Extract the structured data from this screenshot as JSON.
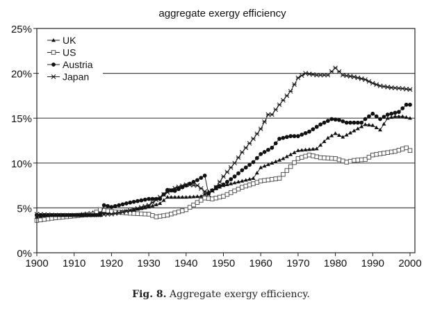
{
  "chart_data": {
    "type": "line",
    "title": "aggregate exergy efficiency",
    "xlabel": "",
    "ylabel": "",
    "xlim": [
      1900,
      2001
    ],
    "ylim": [
      0,
      25
    ],
    "x_ticks": [
      "1900",
      "1910",
      "1920",
      "1930",
      "1940",
      "1950",
      "1960",
      "1970",
      "1980",
      "1990",
      "2000"
    ],
    "y_ticks": [
      "0%",
      "5%",
      "10%",
      "15%",
      "20%",
      "25%"
    ],
    "grid": "horizontal",
    "legend_position": "top-left",
    "series": [
      {
        "name": "UK",
        "marker": "triangle",
        "x": [
          1900,
          1905,
          1910,
          1915,
          1920,
          1925,
          1930,
          1933,
          1935,
          1940,
          1944,
          1946,
          1950,
          1955,
          1958,
          1960,
          1963,
          1966,
          1970,
          1975,
          1978,
          1980,
          1982,
          1985,
          1988,
          1990,
          1992,
          1994,
          1996,
          1998,
          2000
        ],
        "y": [
          4.0,
          4.1,
          4.2,
          4.5,
          4.5,
          4.7,
          5.1,
          5.5,
          6.2,
          6.2,
          6.3,
          6.8,
          7.5,
          8.0,
          8.3,
          9.5,
          10.0,
          10.5,
          11.4,
          11.6,
          12.8,
          13.3,
          12.9,
          13.6,
          14.3,
          14.2,
          13.7,
          15.0,
          15.2,
          15.2,
          15.0
        ]
      },
      {
        "name": "US",
        "marker": "square-open",
        "x": [
          1900,
          1905,
          1910,
          1915,
          1917,
          1920,
          1925,
          1930,
          1932,
          1935,
          1940,
          1943,
          1945,
          1947,
          1950,
          1955,
          1958,
          1960,
          1965,
          1968,
          1970,
          1973,
          1976,
          1980,
          1983,
          1985,
          1988,
          1990,
          1993,
          1996,
          1999,
          2000
        ],
        "y": [
          3.6,
          3.9,
          4.1,
          4.3,
          4.8,
          4.6,
          4.4,
          4.3,
          4.0,
          4.2,
          4.8,
          5.6,
          6.1,
          6.0,
          6.3,
          7.3,
          7.7,
          8.0,
          8.3,
          9.6,
          10.5,
          10.9,
          10.6,
          10.5,
          10.1,
          10.3,
          10.4,
          10.9,
          11.1,
          11.3,
          11.7,
          11.4
        ]
      },
      {
        "name": "Austria",
        "marker": "circle",
        "x": [
          1900,
          1905,
          1910,
          1915,
          1917,
          1918,
          1920,
          1925,
          1930,
          1933,
          1935,
          1937,
          1940,
          1943,
          1945,
          1946,
          1948,
          1950,
          1953,
          1955,
          1958,
          1960,
          1963,
          1965,
          1968,
          1970,
          1973,
          1976,
          1979,
          1981,
          1983,
          1987,
          1988,
          1990,
          1992,
          1994,
          1997,
          1999,
          2000
        ],
        "y": [
          4.2,
          4.2,
          4.2,
          4.2,
          4.2,
          5.3,
          5.1,
          5.6,
          6.0,
          6.0,
          7.0,
          6.9,
          7.5,
          8.1,
          8.6,
          6.6,
          7.3,
          7.6,
          8.5,
          9.2,
          10.1,
          11.0,
          11.7,
          12.7,
          13.0,
          13.0,
          13.5,
          14.3,
          14.9,
          14.8,
          14.5,
          14.5,
          14.9,
          15.5,
          14.9,
          15.4,
          15.7,
          16.5,
          16.5
        ]
      },
      {
        "name": "Japan",
        "marker": "star",
        "x": [
          1900,
          1905,
          1910,
          1915,
          1920,
          1925,
          1930,
          1934,
          1937,
          1940,
          1943,
          1946,
          1948,
          1950,
          1953,
          1955,
          1958,
          1960,
          1962,
          1963,
          1965,
          1968,
          1970,
          1972,
          1975,
          1978,
          1980,
          1982,
          1985,
          1988,
          1990,
          1992,
          1995,
          1998,
          2000
        ],
        "y": [
          4.3,
          4.2,
          4.2,
          4.2,
          4.3,
          4.7,
          5.3,
          6.5,
          7.2,
          7.6,
          7.5,
          6.5,
          7.3,
          8.5,
          10.0,
          11.2,
          12.7,
          13.8,
          15.4,
          15.4,
          16.5,
          18.0,
          19.5,
          20.0,
          19.8,
          19.8,
          20.6,
          19.8,
          19.6,
          19.3,
          18.9,
          18.6,
          18.4,
          18.3,
          18.2
        ]
      }
    ]
  },
  "caption": {
    "label": "Fig. 8.",
    "text": " Aggregate exergy efficiency."
  }
}
